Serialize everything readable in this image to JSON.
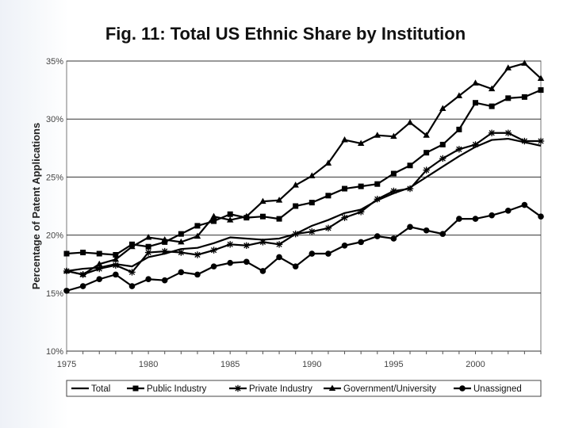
{
  "chart_data": {
    "type": "line",
    "title": "Fig. 11: Total US Ethnic Share by Institution",
    "xlabel": "",
    "ylabel": "Percentage of Patent Applications",
    "xlim": [
      1975,
      2004
    ],
    "ylim": [
      10,
      35
    ],
    "x_ticks": [
      1975,
      1980,
      1985,
      1990,
      1995,
      2000
    ],
    "x_tick_labels": [
      "1975",
      "1980",
      "1985",
      "1990",
      "1995",
      "2000"
    ],
    "y_ticks": [
      10,
      15,
      20,
      25,
      30,
      35
    ],
    "y_tick_labels": [
      "10%",
      "15%",
      "20%",
      "25%",
      "30%",
      "35%"
    ],
    "grid": true,
    "legend_position": "bottom",
    "x": [
      1975,
      1976,
      1977,
      1978,
      1979,
      1980,
      1981,
      1982,
      1983,
      1984,
      1985,
      1986,
      1987,
      1988,
      1989,
      1990,
      1991,
      1992,
      1993,
      1994,
      1995,
      1996,
      1997,
      1998,
      1999,
      2000,
      2001,
      2002,
      2003,
      2004
    ],
    "series": [
      {
        "name": "Total",
        "marker": "none",
        "values": [
          16.9,
          17.1,
          17.2,
          17.5,
          17.3,
          18.1,
          18.4,
          18.8,
          18.9,
          19.3,
          19.8,
          19.7,
          19.6,
          19.7,
          20.1,
          20.8,
          21.3,
          21.9,
          22.2,
          23.0,
          23.6,
          24.1,
          25.0,
          25.9,
          26.8,
          27.6,
          28.2,
          28.3,
          28.0,
          27.7
        ]
      },
      {
        "name": "Public Industry",
        "marker": "square",
        "values": [
          18.4,
          18.5,
          18.4,
          18.3,
          19.2,
          19.0,
          19.4,
          20.1,
          20.8,
          21.2,
          21.8,
          21.5,
          21.6,
          21.4,
          22.5,
          22.8,
          23.4,
          24.0,
          24.2,
          24.4,
          25.3,
          26.0,
          27.1,
          27.8,
          29.1,
          31.4,
          31.1,
          31.8,
          31.9,
          32.5
        ]
      },
      {
        "name": "Private Industry",
        "marker": "star",
        "values": [
          16.9,
          16.6,
          17.1,
          17.4,
          16.8,
          18.5,
          18.6,
          18.5,
          18.3,
          18.7,
          19.2,
          19.1,
          19.4,
          19.2,
          20.1,
          20.3,
          20.6,
          21.5,
          22.0,
          23.1,
          23.8,
          24.0,
          25.6,
          26.6,
          27.4,
          27.8,
          28.8,
          28.8,
          28.1,
          28.1
        ]
      },
      {
        "name": "Government/University",
        "marker": "triangle",
        "values": [
          16.9,
          16.6,
          17.5,
          17.9,
          19.0,
          19.8,
          19.6,
          19.4,
          19.9,
          21.6,
          21.3,
          21.6,
          22.9,
          23.0,
          24.3,
          25.1,
          26.2,
          28.2,
          27.9,
          28.6,
          28.5,
          29.7,
          28.6,
          30.9,
          32.0,
          33.1,
          32.6,
          34.4,
          34.8,
          33.5
        ]
      },
      {
        "name": "Unassigned",
        "marker": "circle",
        "values": [
          15.2,
          15.6,
          16.2,
          16.6,
          15.6,
          16.2,
          16.1,
          16.8,
          16.6,
          17.3,
          17.6,
          17.7,
          16.9,
          18.1,
          17.3,
          18.4,
          18.4,
          19.1,
          19.4,
          19.9,
          19.7,
          20.7,
          20.4,
          20.1,
          21.4,
          21.4,
          21.7,
          22.1,
          22.6,
          21.6
        ]
      }
    ]
  }
}
